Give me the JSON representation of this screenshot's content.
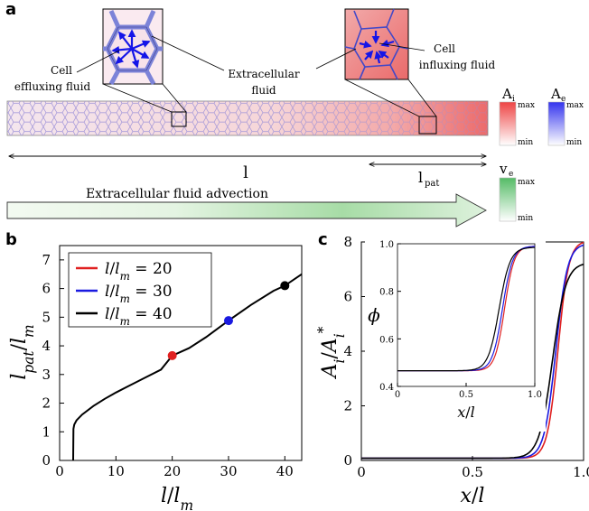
{
  "panel_a": {
    "letter": "a",
    "labels": {
      "cell_effluxing": [
        "Cell",
        "effluxing fluid"
      ],
      "extracellular": [
        "Extracellular",
        "fluid"
      ],
      "cell_influxing": [
        "Cell",
        "influxing fluid"
      ],
      "length_l": "l",
      "length_lpat": "l",
      "length_lpat_sub": "pat",
      "advection": "Extracellular fluid advection"
    },
    "colorbars": [
      {
        "name": "A",
        "sub": "i",
        "max": "max",
        "min": "min",
        "color": "#ee4444"
      },
      {
        "name": "A",
        "sub": "e",
        "max": "max",
        "min": "min",
        "color": "#3333ee"
      },
      {
        "name": "v",
        "sub": "e",
        "max": "max",
        "min": "min",
        "color": "#55bb66"
      }
    ]
  },
  "panel_b": {
    "letter": "b"
  },
  "panel_c": {
    "letter": "c"
  },
  "chart_data": [
    {
      "type": "line",
      "xlabel": "l/l_m",
      "ylabel": "l_pat/l_m",
      "xlim": [
        0,
        43
      ],
      "ylim": [
        0,
        7.5
      ],
      "xticks": [
        0,
        10,
        20,
        30,
        40
      ],
      "yticks": [
        0,
        1,
        2,
        3,
        4,
        5,
        6,
        7
      ],
      "series": [
        {
          "name": "",
          "color": "#000000",
          "x": [
            2.4,
            2.45,
            2.6,
            3,
            4,
            6,
            8,
            10,
            12,
            15,
            18,
            20,
            23,
            26,
            30,
            34,
            38,
            40,
            43
          ],
          "y": [
            0,
            1.1,
            1.25,
            1.4,
            1.6,
            1.9,
            2.15,
            2.37,
            2.57,
            2.87,
            3.17,
            3.66,
            3.92,
            4.3,
            4.88,
            5.43,
            5.92,
            6.1,
            6.5
          ]
        }
      ],
      "points": [
        {
          "name": "l/l_m = 20",
          "x": 20,
          "y": 3.66,
          "color": "#e02020"
        },
        {
          "name": "l/l_m = 30",
          "x": 30,
          "y": 4.88,
          "color": "#1a1ae0"
        },
        {
          "name": "l/l_m = 40",
          "x": 40,
          "y": 6.1,
          "color": "#000000"
        }
      ],
      "legend": [
        "l/l_m = 20",
        "l/l_m = 30",
        "l/l_m = 40"
      ],
      "legend_placement": "top-left"
    },
    {
      "type": "line",
      "xlabel": "x/l",
      "ylabel": "A_i/A_i^*",
      "xlim": [
        0,
        1.0
      ],
      "ylim": [
        0,
        8
      ],
      "xticks": [
        0,
        0.5,
        1.0
      ],
      "xtick_labels": [
        "0",
        "0.5",
        "1.0"
      ],
      "yticks": [
        0,
        2,
        4,
        6,
        8
      ],
      "series": [
        {
          "name": "",
          "color": "#e02020",
          "x0": 0.885,
          "w": 0.024,
          "top": 8.05
        },
        {
          "name": "",
          "color": "#1a1ae0",
          "x0": 0.875,
          "w": 0.026,
          "top": 7.95
        },
        {
          "name": "",
          "color": "#000000",
          "x0": 0.86,
          "w": 0.03,
          "top": 7.25
        }
      ]
    },
    {
      "type": "line",
      "inset": true,
      "xlabel": "x/l",
      "ylabel": "ϕ",
      "xlim": [
        0,
        1.0
      ],
      "ylim": [
        0.4,
        1.0
      ],
      "xticks": [
        0,
        0.5,
        1.0
      ],
      "xtick_labels": [
        "0",
        "0.5",
        "1.0"
      ],
      "yticks": [
        0.4,
        0.6,
        0.8,
        1.0
      ],
      "ytick_labels": [
        "0.4",
        "0.6",
        "0.8",
        "1.0"
      ],
      "series": [
        {
          "name": "",
          "color": "#e02020",
          "x0": 0.78,
          "w": 0.035,
          "low": 0.466,
          "high": 0.99
        },
        {
          "name": "",
          "color": "#1a1ae0",
          "x0": 0.765,
          "w": 0.037,
          "low": 0.466,
          "high": 0.99
        },
        {
          "name": "",
          "color": "#000000",
          "x0": 0.74,
          "w": 0.04,
          "low": 0.466,
          "high": 0.985
        }
      ]
    }
  ]
}
